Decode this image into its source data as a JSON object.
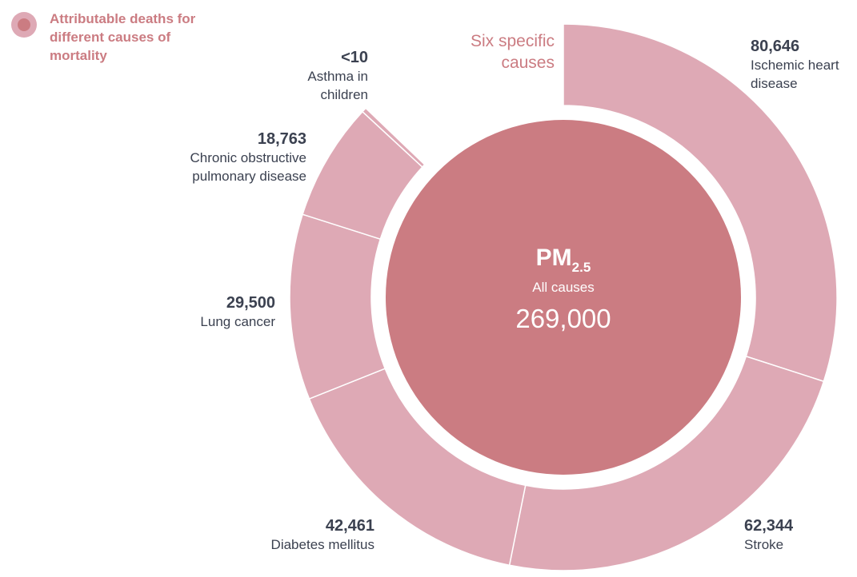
{
  "legend": {
    "text": "Attributable deaths for different causes of mortality"
  },
  "group_label": "Six specific causes",
  "center": {
    "title": "PM",
    "title_sub": "2.5",
    "subtitle": "All causes",
    "value": "269,000"
  },
  "colors": {
    "segment": "#dea9b5",
    "center": "#cb7c82",
    "text": "#3b4150",
    "accent": "#cb7c82"
  },
  "chart_data": {
    "type": "pie",
    "title": "",
    "total_label": "All causes",
    "total": 269000,
    "segments": [
      {
        "name": "Ischemic heart disease",
        "value": 80646,
        "value_label": "80,646"
      },
      {
        "name": "Stroke",
        "value": 62344,
        "value_label": "62,344"
      },
      {
        "name": "Diabetes mellitus",
        "value": 42461,
        "value_label": "42,461"
      },
      {
        "name": "Lung cancer",
        "value": 29500,
        "value_label": "29,500"
      },
      {
        "name": "Chronic obstructive pulmonary disease",
        "value": 18763,
        "value_label": "18,763"
      },
      {
        "name": "Asthma in children",
        "value": 10,
        "value_label": "<10"
      }
    ]
  }
}
